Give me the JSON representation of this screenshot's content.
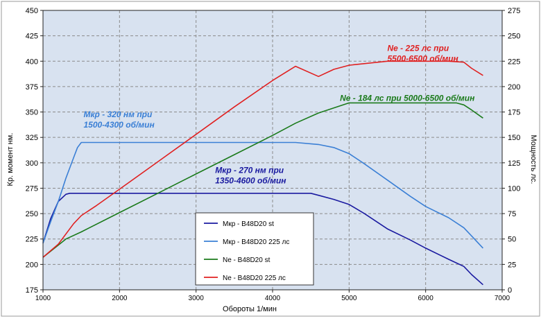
{
  "chart_data": {
    "type": "line",
    "xlabel": "Обороты  1/мин",
    "ylabel_left": "Кр.  момент  нм.",
    "ylabel_right": "Мощность  лс.",
    "xlim": [
      1000,
      7000
    ],
    "ylim_left": [
      175,
      450
    ],
    "ylim_right": [
      0,
      275
    ],
    "x_ticks": [
      1000,
      2000,
      3000,
      4000,
      5000,
      6000,
      7000
    ],
    "y_left_ticks": [
      175,
      200,
      225,
      250,
      275,
      300,
      325,
      350,
      375,
      400,
      425,
      450
    ],
    "y_right_ticks": [
      0,
      25,
      50,
      75,
      100,
      125,
      150,
      175,
      200,
      225,
      250,
      275
    ],
    "grid": true,
    "legend_position": "bottom-center",
    "colors": {
      "plot_bg": "#d8e2f0",
      "frame_bg": "#ffffff"
    },
    "series": [
      {
        "name": "Мкр - B48D20  st",
        "axis": "left",
        "color": "#1a1aa0",
        "x": [
          1000,
          1100,
          1200,
          1300,
          1350,
          1400,
          2000,
          3000,
          4000,
          4500,
          4600,
          4800,
          5000,
          5200,
          5500,
          5800,
          6000,
          6300,
          6500,
          6600,
          6750
        ],
        "y": [
          221,
          245,
          262,
          269,
          270,
          270,
          270,
          270,
          270,
          270,
          268,
          264,
          259,
          250,
          235,
          224,
          216,
          205,
          198,
          190,
          180
        ]
      },
      {
        "name": "Мкр - B48D20  225 лс",
        "axis": "left",
        "color": "#3a7fd5",
        "x": [
          1000,
          1100,
          1200,
          1300,
          1400,
          1450,
          1500,
          2000,
          3000,
          4000,
          4300,
          4600,
          4800,
          5000,
          5200,
          5500,
          5800,
          6000,
          6300,
          6500,
          6600,
          6750
        ],
        "y": [
          221,
          242,
          262,
          285,
          305,
          315,
          320,
          320,
          320,
          320,
          320,
          318,
          315,
          309,
          299,
          283,
          267,
          257,
          246,
          236,
          228,
          216
        ]
      },
      {
        "name": "Ne  -  B48D20 st",
        "axis": "right",
        "color": "#1a7a1a",
        "x": [
          1000,
          1300,
          1500,
          2000,
          2500,
          3000,
          3500,
          4000,
          4300,
          4600,
          5000,
          5500,
          6000,
          6400,
          6500,
          6600,
          6750
        ],
        "y": [
          32,
          50,
          57,
          76,
          95,
          114,
          133,
          152,
          164,
          174,
          184,
          184,
          184,
          184,
          182,
          177,
          169
        ]
      },
      {
        "name": "Ne  -  B48D20  225 лс",
        "axis": "right",
        "color": "#e02020",
        "x": [
          1000,
          1200,
          1400,
          1500,
          1700,
          2000,
          2500,
          3000,
          3500,
          4000,
          4300,
          4600,
          4800,
          5000,
          5500,
          6000,
          6300,
          6500,
          6600,
          6750
        ],
        "y": [
          32,
          45,
          65,
          73,
          83,
          99,
          126,
          153,
          180,
          206,
          220,
          210,
          217,
          221,
          225,
          225,
          225,
          224,
          218,
          211
        ]
      }
    ],
    "annotations": [
      {
        "lines": [
          "Ne - 225 лс при",
          "5500-6500 об/мин"
        ],
        "color": "#e02020",
        "x": 5500,
        "y_left": 410,
        "align": "start"
      },
      {
        "lines": [
          "Ne - 184 лс при 5000-6500 об/мин"
        ],
        "color": "#1a7a1a",
        "x": 4880,
        "y_left": 361,
        "align": "start"
      },
      {
        "lines": [
          "Мкр - 320 нм при",
          "1500-4300 об/мин"
        ],
        "color": "#3a7fd5",
        "x": 1530,
        "y_left": 345,
        "align": "start"
      },
      {
        "lines": [
          "Мкр - 270 нм при",
          "1350-4600 об/мин"
        ],
        "color": "#1a1aa0",
        "x": 3250,
        "y_left": 290,
        "align": "start"
      }
    ]
  }
}
